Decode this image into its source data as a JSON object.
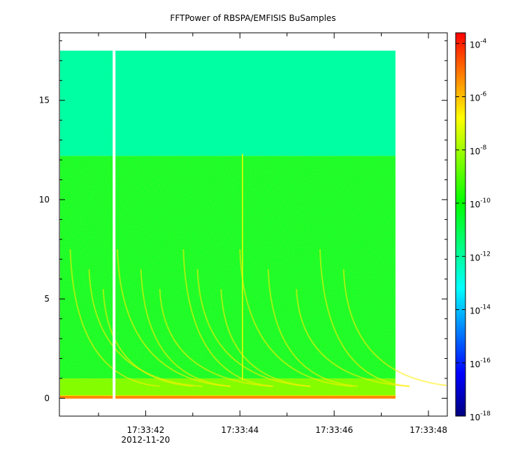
{
  "chart_data": {
    "type": "heatmap",
    "title": "FFTPower of RBSPA/EMFISIS  BuSamples",
    "xlabel": "",
    "ylabel": "",
    "x_axis": {
      "ticks": [
        "17:33:42",
        "17:33:44",
        "17:33:46",
        "17:33:48"
      ],
      "tick_seconds": [
        42,
        44,
        46,
        48
      ],
      "minor_tick_seconds": [
        41,
        42,
        43,
        44,
        45,
        46,
        47,
        48
      ],
      "range_seconds": [
        40.17,
        48.4
      ],
      "data_end_seconds": 47.3,
      "gap_seconds": 41.33,
      "date_label": "2012-11-20"
    },
    "y_axis": {
      "ticks": [
        "0",
        "5",
        "10",
        "15"
      ],
      "tick_values": [
        0,
        5,
        10,
        15
      ],
      "minor_tick_values": [
        1,
        2,
        3,
        4,
        6,
        7,
        8,
        9,
        11,
        12,
        13,
        14,
        16,
        17,
        18
      ],
      "range": [
        -0.9,
        18.4
      ],
      "data_top": 17.5,
      "band_edge": 12.2
    },
    "colorbar": {
      "scale": "log",
      "range": [
        -18,
        -3.6
      ],
      "ticks": [
        {
          "base": "10",
          "exp": "-4",
          "value": -4
        },
        {
          "base": "10",
          "exp": "-6",
          "value": -6
        },
        {
          "base": "10",
          "exp": "-8",
          "value": -8
        },
        {
          "base": "10",
          "exp": "-10",
          "value": -10
        },
        {
          "base": "10",
          "exp": "-12",
          "value": -12
        },
        {
          "base": "10",
          "exp": "-14",
          "value": -14
        },
        {
          "base": "10",
          "exp": "-16",
          "value": -16
        },
        {
          "base": "10",
          "exp": "-18",
          "value": -18
        }
      ],
      "colors": [
        "#00007f",
        "#0000ff",
        "#007fff",
        "#00ffff",
        "#00ff80",
        "#00ff00",
        "#80ff00",
        "#ffff00",
        "#ff8000",
        "#ff0000"
      ]
    },
    "regions": [
      {
        "name": "upper band",
        "y_range": [
          12.2,
          17.5
        ],
        "level": -12.0
      },
      {
        "name": "lower band",
        "y_range": [
          1.0,
          12.2
        ],
        "level": -10.6
      },
      {
        "name": "low-frequency enhancement",
        "y_range": [
          0,
          1.0
        ],
        "level": -8.5
      },
      {
        "name": "base line",
        "y_range": [
          0,
          0.15
        ],
        "level": -6.5
      }
    ],
    "grid": false
  }
}
